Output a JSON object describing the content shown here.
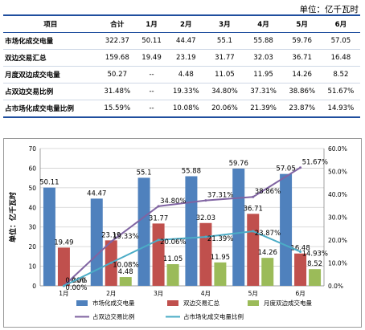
{
  "unit_label": "单位：亿千瓦时",
  "table": {
    "headers": [
      "项目",
      "合计",
      "1月",
      "2月",
      "3月",
      "4月",
      "5月",
      "6月"
    ],
    "rows": [
      [
        "市场化成交电量",
        "322.37",
        "50.11",
        "44.47",
        "55.1",
        "55.88",
        "59.76",
        "57.05"
      ],
      [
        "双边交易汇总",
        "159.68",
        "19.49",
        "23.19",
        "31.77",
        "32.03",
        "36.71",
        "16.48"
      ],
      [
        "月度双边成交电量",
        "50.27",
        "--",
        "4.48",
        "11.05",
        "11.95",
        "14.26",
        "8.52"
      ],
      [
        "占双边交易比例",
        "31.48%",
        "--",
        "19.33%",
        "34.80%",
        "37.31%",
        "38.86%",
        "51.67%"
      ],
      [
        "占市场化成交电量比例",
        "15.59%",
        "--",
        "10.08%",
        "20.06%",
        "21.39%",
        "23.87%",
        "14.93%"
      ]
    ]
  },
  "chart_data": {
    "type": "bar",
    "categories": [
      "1月",
      "2月",
      "3月",
      "4月",
      "5月",
      "6月"
    ],
    "ylabel": "单位：亿千瓦时",
    "ylim": [
      0,
      70
    ],
    "y_ticks": [
      "0",
      "10",
      "20",
      "30",
      "40",
      "50",
      "60",
      "70"
    ],
    "y2lim": [
      0,
      60
    ],
    "y2_ticks": [
      "0.0%",
      "10.0%",
      "20.0%",
      "30.0%",
      "40.0%",
      "50.0%",
      "60.0%"
    ],
    "grid": true,
    "legend_position": "bottom",
    "series": [
      {
        "name": "市场化成交电量",
        "kind": "bar",
        "axis": "left",
        "color": "#4f81bd",
        "values": [
          50.11,
          44.47,
          55.1,
          55.88,
          59.76,
          57.05
        ],
        "labels": [
          "50.11",
          "44.47",
          "55.1",
          "55.88",
          "59.76",
          "57.05"
        ]
      },
      {
        "name": "双边交易汇总",
        "kind": "bar",
        "axis": "left",
        "color": "#c0504d",
        "values": [
          19.49,
          23.19,
          31.77,
          32.03,
          36.71,
          16.48
        ],
        "labels": [
          "19.49",
          "23.19",
          "31.77",
          "32.03",
          "36.71",
          "16.48"
        ]
      },
      {
        "name": "月度双边成交电量",
        "kind": "bar",
        "axis": "left",
        "color": "#9bbb59",
        "values": [
          0,
          4.48,
          11.05,
          11.95,
          14.26,
          8.52
        ],
        "labels": [
          "0.00",
          "4.48",
          "11.05",
          "11.95",
          "14.26",
          "8.52"
        ]
      },
      {
        "name": "占双边交易比例",
        "kind": "line",
        "axis": "right",
        "color": "#8064a2",
        "values": [
          0,
          19.33,
          34.8,
          37.31,
          38.86,
          51.67
        ],
        "labels": [
          "0.00%",
          "19.33%",
          "34.80%",
          "37.31%",
          "38.86%",
          "51.67%"
        ]
      },
      {
        "name": "占市场化成交电量比例",
        "kind": "line",
        "axis": "right",
        "color": "#4bacc6",
        "values": [
          0,
          10.08,
          20.06,
          21.39,
          23.87,
          14.93
        ],
        "labels": [
          "0.00%",
          "10.08%",
          "20.06%",
          "21.39%",
          "23.87%",
          "14.93%"
        ]
      }
    ]
  }
}
